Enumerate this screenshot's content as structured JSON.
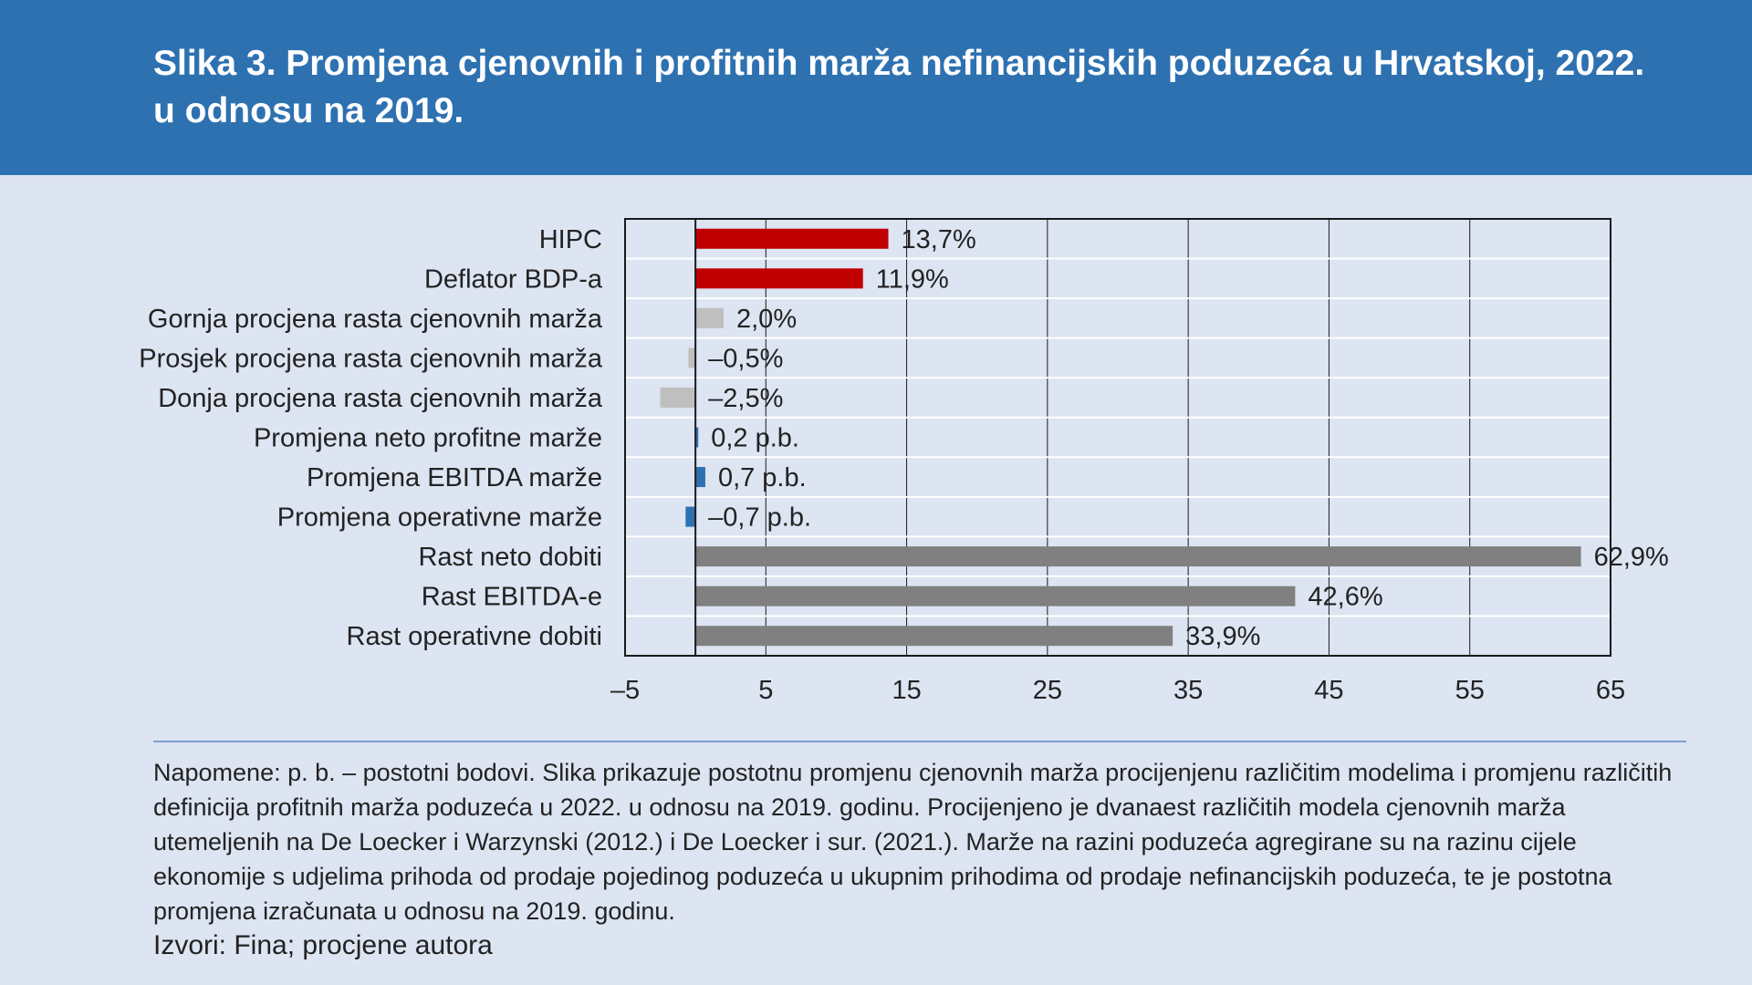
{
  "header": {
    "title": "Slika 3. Promjena cjenovnih i profitnih marža nefinancijskih poduzeća u Hrvatskoj, 2022. u odnosu na 2019."
  },
  "chart_data": {
    "type": "bar",
    "orientation": "horizontal",
    "title": "",
    "xlabel": "",
    "ylabel": "",
    "xlim": [
      -5,
      65
    ],
    "xticks": [
      -5,
      5,
      15,
      25,
      35,
      45,
      55,
      65
    ],
    "xtick_labels": [
      "–5",
      "5",
      "15",
      "25",
      "35",
      "45",
      "55",
      "65"
    ],
    "grid": true,
    "legend": "none",
    "categories": [
      "HIPC",
      "Deflator BDP-a",
      "Gornja procjena rasta cjenovnih marža",
      "Prosjek procjena rasta cjenovnih marža",
      "Donja procjena rasta cjenovnih marža",
      "Promjena neto profitne marže",
      "Promjena EBITDA marže",
      "Promjena operativne marže",
      "Rast neto dobiti",
      "Rast EBITDA-e",
      "Rast operativne dobiti"
    ],
    "values": [
      13.7,
      11.9,
      2.0,
      -0.5,
      -2.5,
      0.2,
      0.7,
      -0.7,
      62.9,
      42.6,
      33.9
    ],
    "value_labels": [
      "13,7%",
      "11,9%",
      "2,0%",
      "–0,5%",
      "–2,5%",
      "0,2 p.b.",
      "0,7 p.b.",
      "–0,7 p.b.",
      "62,9%",
      "42,6%",
      "33,9%"
    ],
    "colors": [
      "#c00000",
      "#c00000",
      "#bfbfbf",
      "#bfbfbf",
      "#bfbfbf",
      "#2e71b1",
      "#2e71b1",
      "#2e71b1",
      "#808080",
      "#808080",
      "#808080"
    ]
  },
  "notes": {
    "text": "Napomene: p. b. – postotni bodovi. Slika prikazuje postotnu promjenu cjenovnih marža procijenjenu različitim modelima i promjenu različitih definicija profitnih marža poduzeća u 2022. u odnosu na 2019. godinu. Procijenjeno je dvanaest različitih modela cjenovnih marža utemeljenih na De Loecker i Warzynski (2012.) i De Loecker i sur. (2021.). Marže na razini poduzeća agregirane su na razinu cijele ekonomije s udjelima prihoda od prodaje pojedinog poduzeća u ukupnim prihodima od prodaje nefinancijskih poduzeća, te je postotna promjena izračunata u odnosu na 2019. godinu."
  },
  "sources": {
    "text": "Izvori: Fina; procjene autora"
  }
}
